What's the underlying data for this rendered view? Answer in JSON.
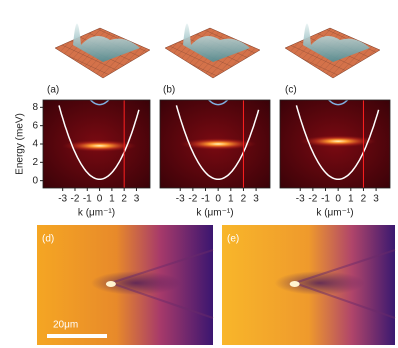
{
  "panel_labels": [
    "(a)",
    "(b)",
    "(c)",
    "(d)",
    "(e)"
  ],
  "spectra": {
    "ylabel": "Energy (meV)",
    "xlabel": "k (μm⁻¹)",
    "ylim": [
      -0.8,
      8.8
    ],
    "yticks": [
      0,
      2,
      4,
      6,
      8
    ],
    "xlim": [
      -4.6,
      4.1
    ],
    "xticks": [
      -3,
      -2,
      -1,
      0,
      1,
      2,
      3
    ]
  },
  "scale_bar": {
    "label": "20μm"
  }
}
